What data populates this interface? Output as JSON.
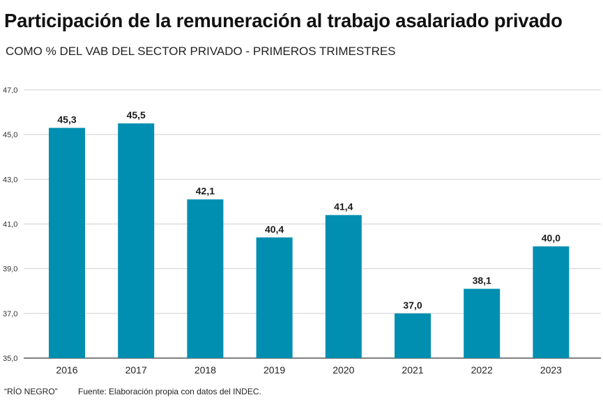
{
  "header": {
    "title": "Participación de la remuneración al trabajo asalariado privado",
    "subtitle": "COMO % DEL VAB DEL SECTOR PRIVADO - PRIMEROS TRIMESTRES"
  },
  "footer": {
    "brand": "“RÍO NEGRO”",
    "source": "Fuente:  Elaboración propia con datos del INDEC."
  },
  "chart_data": {
    "type": "bar",
    "categories": [
      "2016",
      "2017",
      "2018",
      "2019",
      "2020",
      "2021",
      "2022",
      "2023"
    ],
    "values": [
      45.3,
      45.5,
      42.1,
      40.4,
      41.4,
      37.0,
      38.1,
      40.0
    ],
    "value_labels": [
      "45,3",
      "45,5",
      "42,1",
      "40,4",
      "41,4",
      "37,0",
      "38,1",
      "40,0"
    ],
    "yticks": [
      35.0,
      37.0,
      39.0,
      41.0,
      43.0,
      45.0,
      47.0
    ],
    "ytick_labels": [
      "35,0",
      "37,0",
      "39,0",
      "41,0",
      "43,0",
      "45,0",
      "47,0"
    ],
    "ylim": [
      35,
      47
    ],
    "grid": true,
    "bar_color": "#008fb0",
    "grid_color": "#cfcfcf"
  }
}
